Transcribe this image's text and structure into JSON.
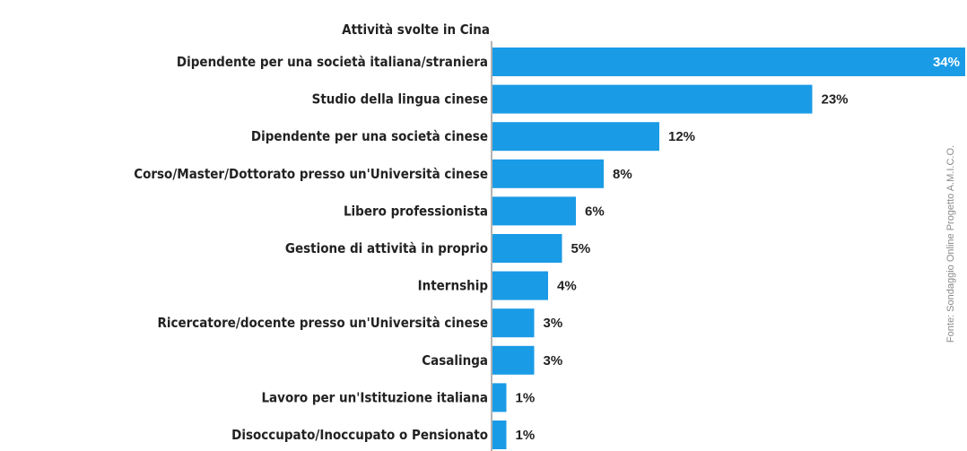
{
  "chart_data": {
    "type": "bar",
    "orientation": "horizontal",
    "title": "Attività svolte in Cina",
    "source": "Fonte: Sondaggio Online Progetto A.M.I.C.O.",
    "categories": [
      "Dipendente per una società italiana/straniera",
      "Studio della lingua cinese",
      "Dipendente per una società cinese",
      "Corso/Master/Dottorato presso un'Università cinese",
      "Libero professionista",
      "Gestione di attività in proprio",
      "Internship",
      "Ricercatore/docente presso un'Università cinese",
      "Casalinga",
      "Lavoro per un'Istituzione italiana",
      "Disoccupato/Inoccupato o Pensionato"
    ],
    "values": [
      34,
      23,
      12,
      8,
      6,
      5,
      4,
      3,
      3,
      1,
      1
    ],
    "value_labels": [
      "34%",
      "23%",
      "12%",
      "8%",
      "6%",
      "5%",
      "4%",
      "3%",
      "3%",
      "1%",
      "1%"
    ],
    "bar_color": "#1a9be6",
    "xlim": [
      0,
      34
    ],
    "grid": false,
    "legend": "none"
  }
}
